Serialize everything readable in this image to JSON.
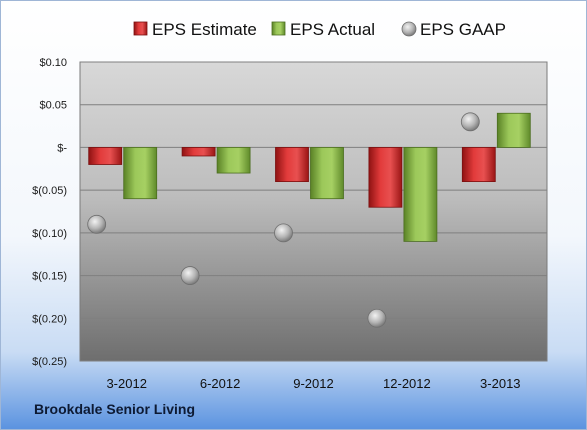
{
  "footer": {
    "company": "Brookdale Senior Living"
  },
  "chart_data": {
    "type": "bar",
    "categories": [
      "3-2012",
      "6-2012",
      "9-2012",
      "12-2012",
      "3-2013"
    ],
    "series": [
      {
        "name": "EPS Estimate",
        "kind": "bar",
        "color": "#d42a2a",
        "values": [
          -0.02,
          -0.01,
          -0.04,
          -0.07,
          -0.04
        ]
      },
      {
        "name": "EPS Actual",
        "kind": "bar",
        "color": "#8db84a",
        "values": [
          -0.06,
          -0.03,
          -0.06,
          -0.11,
          0.04
        ]
      },
      {
        "name": "EPS GAAP",
        "kind": "marker",
        "color": "#b8b8b8",
        "values": [
          -0.09,
          -0.15,
          -0.1,
          -0.2,
          0.03
        ]
      }
    ],
    "y_ticks": [
      0.1,
      0.05,
      0,
      -0.05,
      -0.1,
      -0.15,
      -0.2,
      -0.25
    ],
    "y_tick_labels": [
      "$0.10",
      "$0.05",
      "$-",
      "$(0.05)",
      "$(0.10)",
      "$(0.15)",
      "$(0.20)",
      "$(0.25)"
    ],
    "ylim": [
      -0.25,
      0.1
    ],
    "grid": true,
    "legend": "top"
  }
}
